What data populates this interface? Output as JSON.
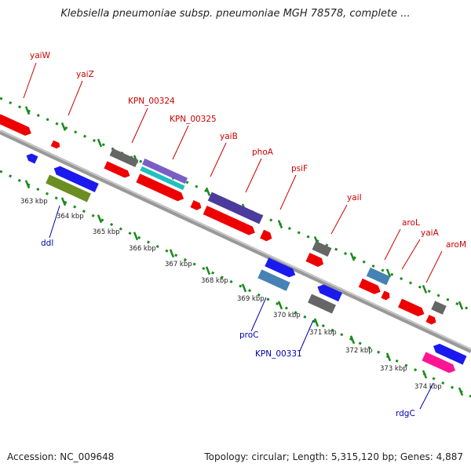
{
  "title": "Klebsiella pneumoniae subsp. pneumoniae MGH 78578, complete ...",
  "footer": {
    "accession": "Accession: NC_009648",
    "summary": "Topology: circular; Length: 5,315,120 bp; Genes: 4,887"
  },
  "colors": {
    "forward_label": "#cc0000",
    "reverse_label": "#0000aa",
    "tick": "#1a8a1a",
    "backbone": "#999999"
  },
  "scale_labels": [
    "363 kbp",
    "364 kbp",
    "365 kbp",
    "366 kbp",
    "367 kbp",
    "368 kbp",
    "369 kbp",
    "370 kbp",
    "371 kbp",
    "372 kbp",
    "373 kbp",
    "374 kbp"
  ],
  "forward_gene_labels": [
    "yaiW",
    "yaiZ",
    "KPN_00324",
    "KPN_00325",
    "yaiB",
    "phoA",
    "psiF",
    "yaiI",
    "aroL",
    "yaiA",
    "aroM"
  ],
  "reverse_gene_labels": [
    "ddl",
    "proC",
    "KPN_00331",
    "rdgC"
  ]
}
